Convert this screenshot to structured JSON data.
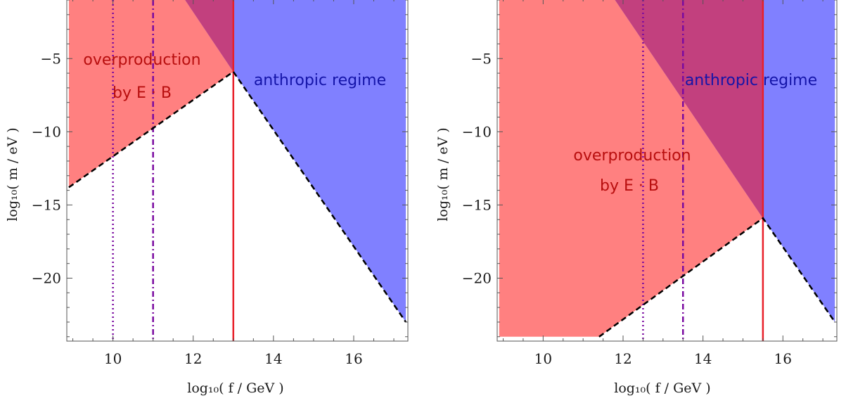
{
  "colors": {
    "overproduction_fill": "#ff8080",
    "anthropic_fill": "#8080ff",
    "overlap_fill": "#c2407e",
    "red_line": "#e8202a",
    "vline": "#7a0aa0",
    "boundary": "#000000",
    "overproduction_text": "#b80e0e",
    "anthropic_text": "#1414a8"
  },
  "chart_data": [
    {
      "type": "area",
      "xlabel": "log₁₀( f / GeV )",
      "ylabel": "log₁₀( m / eV )",
      "xlim": [
        8.85,
        17.35
      ],
      "ylim": [
        -24.3,
        -1.0
      ],
      "xticks": [
        "10",
        "12",
        "14",
        "16"
      ],
      "yticks": [
        "−5",
        "−10",
        "−15",
        "−20"
      ],
      "labels": {
        "overproduction_line1": "overproduction",
        "overproduction_line2": "by E · B",
        "anthropic": "anthropic regime"
      },
      "regions": {
        "overproduction": [
          [
            8.9,
            -13.8
          ],
          [
            8.9,
            -1.0
          ],
          [
            13.0,
            -1.0
          ],
          [
            13.0,
            -5.9
          ]
        ],
        "anthropic": [
          [
            11.8,
            -1.0
          ],
          [
            17.3,
            -1.0
          ],
          [
            17.3,
            -23.0
          ],
          [
            13.0,
            -5.9
          ]
        ],
        "overlap": [
          [
            11.8,
            -1.0
          ],
          [
            13.0,
            -1.0
          ],
          [
            13.0,
            -5.9
          ]
        ]
      },
      "boundary": [
        [
          8.9,
          -13.8
        ],
        [
          13.0,
          -5.9
        ],
        [
          17.3,
          -23.0
        ]
      ],
      "red_line_x": 13.0,
      "dotted_line_x": 10.0,
      "dashdot_line_x": 11.0
    },
    {
      "type": "area",
      "xlabel": "log₁₀( f / GeV )",
      "ylabel": "log₁₀( m / eV )",
      "xlim": [
        8.85,
        17.35
      ],
      "ylim": [
        -24.3,
        -1.0
      ],
      "xticks": [
        "10",
        "12",
        "14",
        "16"
      ],
      "yticks": [
        "−5",
        "−10",
        "−15",
        "−20"
      ],
      "labels": {
        "overproduction_line1": "overproduction",
        "overproduction_line2": "by E · B",
        "anthropic": "anthropic regime"
      },
      "regions": {
        "overproduction": [
          [
            8.9,
            -24.0
          ],
          [
            8.9,
            -1.0
          ],
          [
            15.5,
            -1.0
          ],
          [
            15.5,
            -15.9
          ],
          [
            11.4,
            -24.0
          ]
        ],
        "anthropic": [
          [
            11.8,
            -1.0
          ],
          [
            17.3,
            -1.0
          ],
          [
            17.3,
            -23.0
          ],
          [
            15.5,
            -15.9
          ]
        ],
        "overlap": [
          [
            11.8,
            -1.0
          ],
          [
            15.5,
            -1.0
          ],
          [
            15.5,
            -15.9
          ]
        ]
      },
      "boundary": [
        [
          11.4,
          -24.0
        ],
        [
          15.5,
          -15.9
        ],
        [
          17.3,
          -23.0
        ]
      ],
      "red_line_x": 15.5,
      "dotted_line_x": 12.5,
      "dashdot_line_x": 13.5
    }
  ]
}
